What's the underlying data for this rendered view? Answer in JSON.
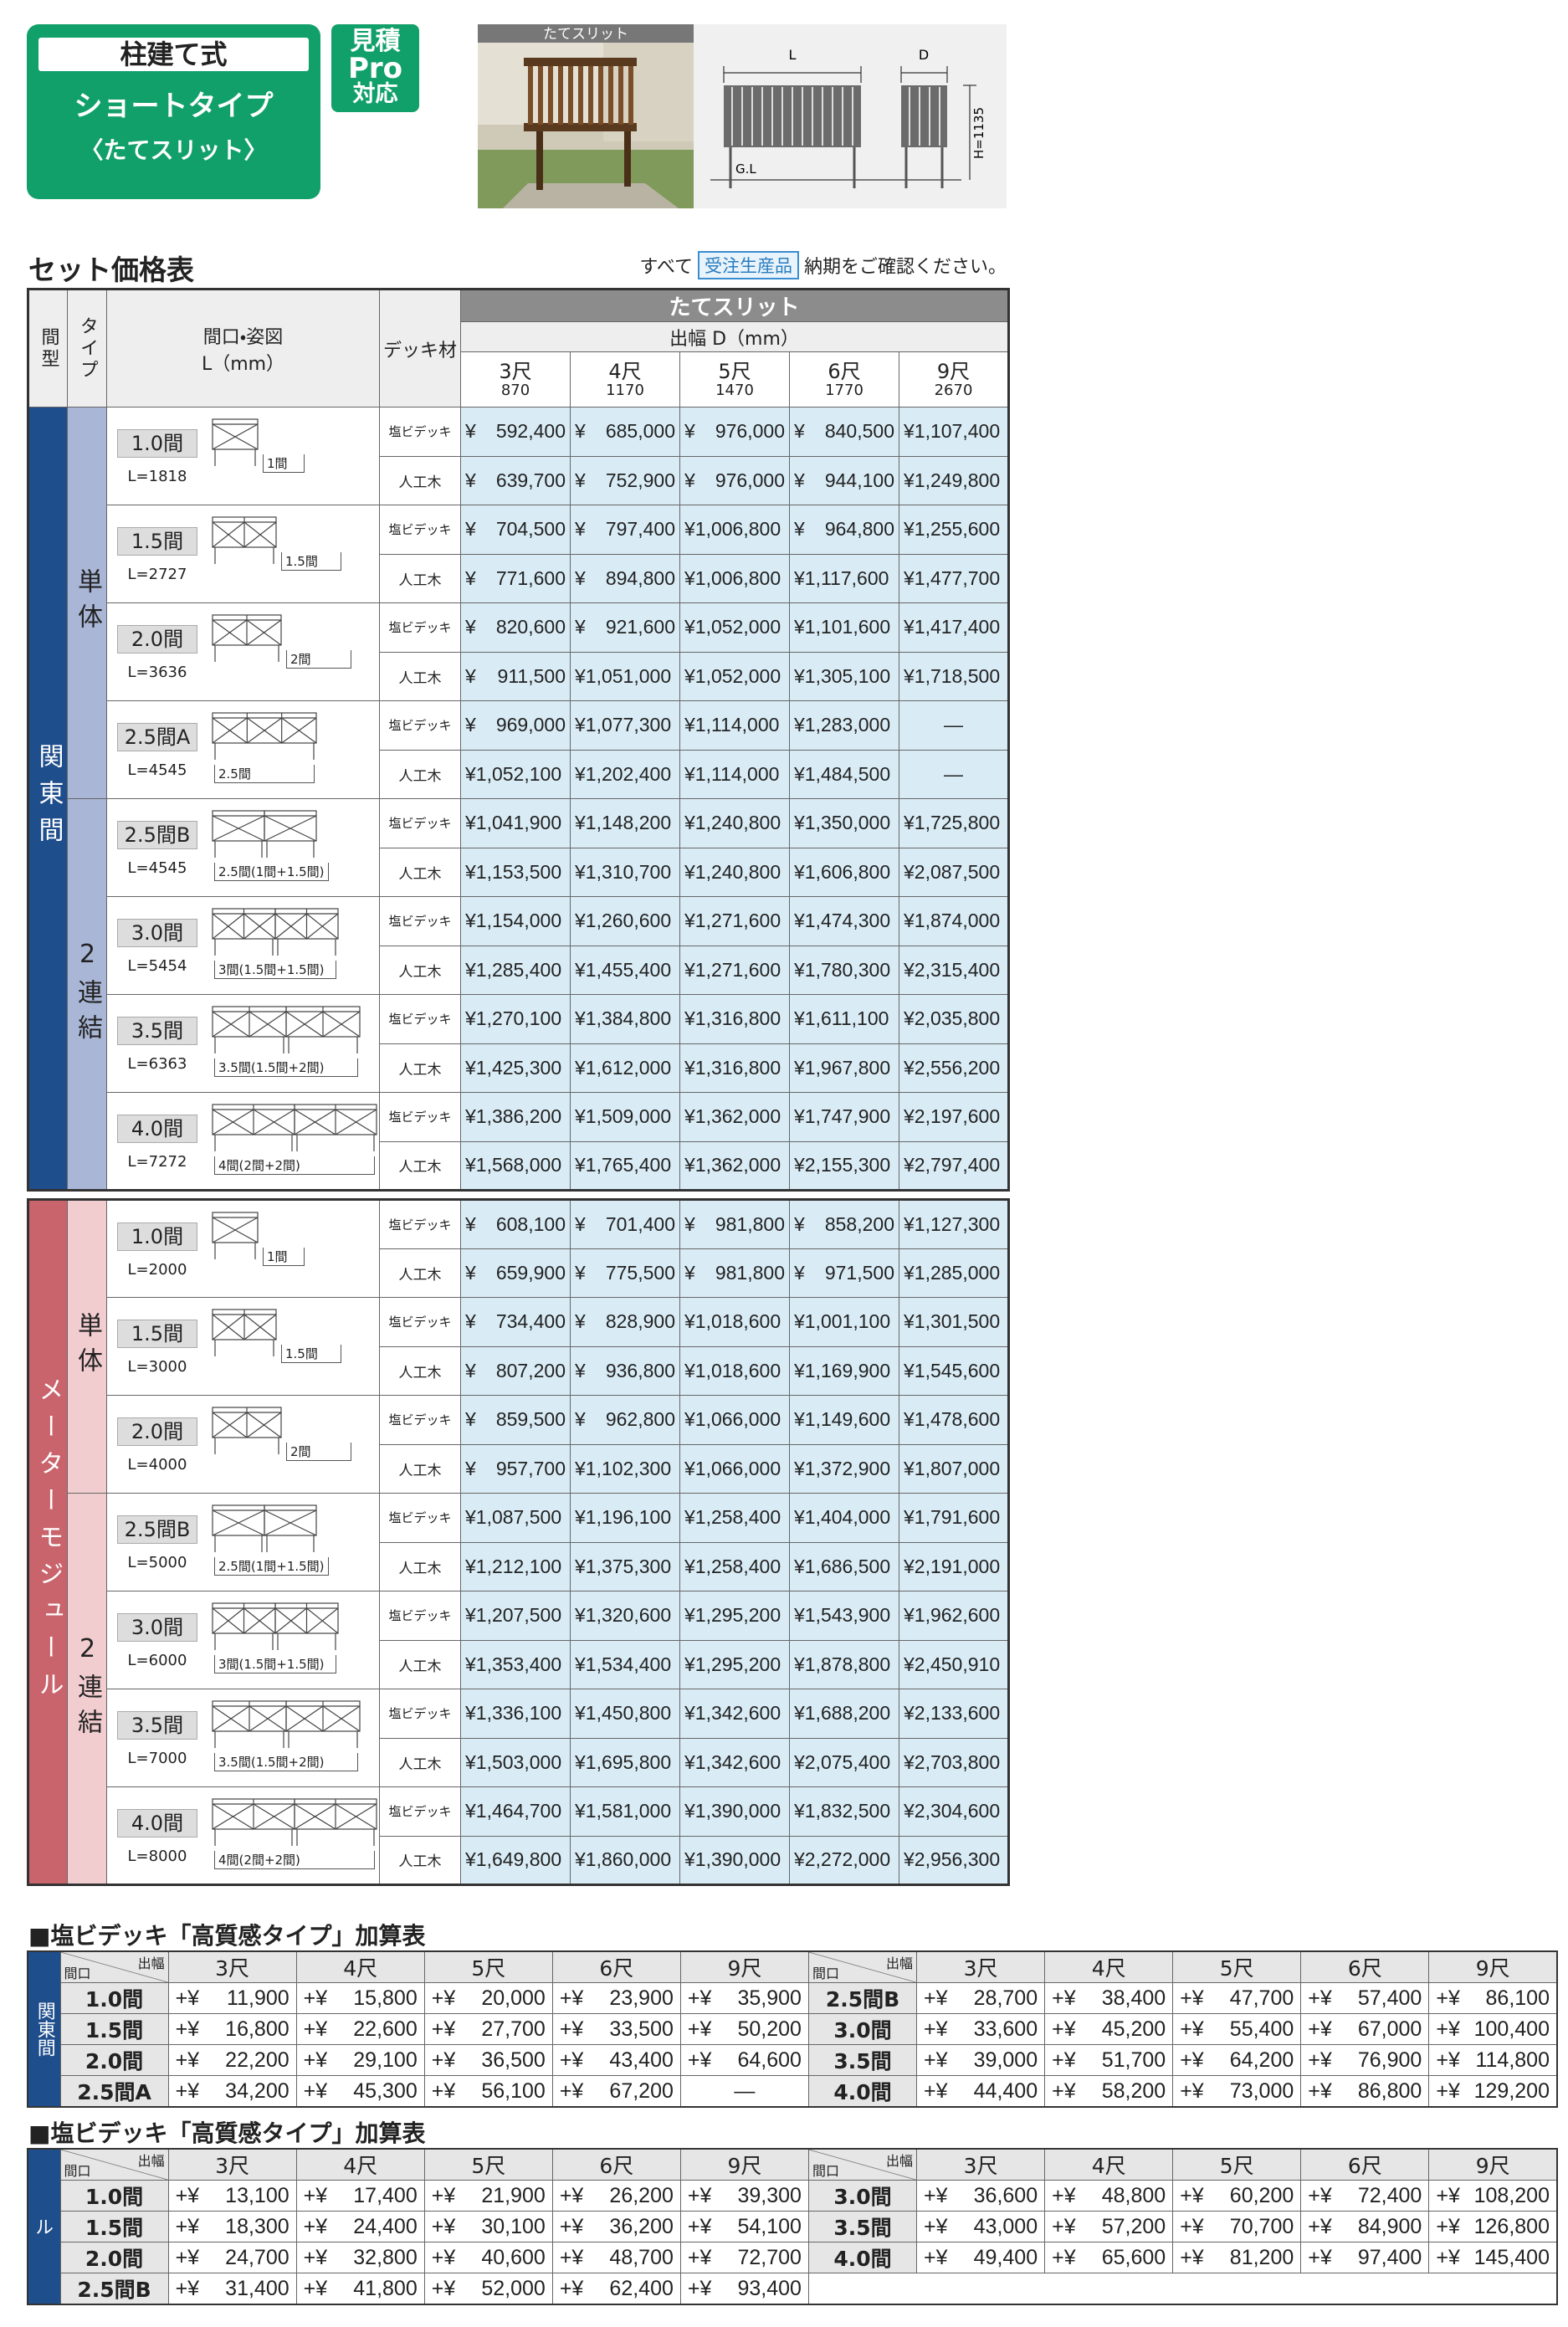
{
  "header": {
    "title": "柱建て式",
    "subtitle": "ショートタイプ",
    "variant": "〈たてスリット〉",
    "badge": [
      "見積",
      "Pro",
      "対応"
    ]
  },
  "photo": {
    "label": "たてスリット"
  },
  "drawing": {
    "width_label": "L",
    "depth_label": "D",
    "height_label": "H=1135",
    "ground_label": "G.L"
  },
  "price_table": {
    "title": "セット価格表",
    "note": {
      "prefix": "すべて",
      "tag": "受注生産品",
      "suffix": "納期をご確認ください。"
    },
    "headers": {
      "frame": "間型",
      "type": "タイプ",
      "size": "間口・姿図",
      "size_unit": "L（mm）",
      "deck": "デッキ材",
      "product": "たてスリット",
      "depth": "出幅 D（mm）"
    },
    "columns": [
      {
        "shaku": "3尺",
        "mm": "870"
      },
      {
        "shaku": "4尺",
        "mm": "1170"
      },
      {
        "shaku": "5尺",
        "mm": "1470"
      },
      {
        "shaku": "6尺",
        "mm": "1770"
      },
      {
        "shaku": "9尺",
        "mm": "2670"
      }
    ],
    "groups": [
      {
        "name": "関東間",
        "types": [
          {
            "name": "単体",
            "sizes": [
              {
                "label": "1.0間",
                "length": "L=1818",
                "sketch": "1間",
                "rows": [
                  {
                    "deck": "塩ビデッキ",
                    "prices": [
                      "¥ 592,400",
                      "¥ 685,000",
                      "¥ 976,000",
                      "¥ 840,500",
                      "¥1,107,400"
                    ]
                  },
                  {
                    "deck": "人工木",
                    "prices": [
                      "¥ 639,700",
                      "¥ 752,900",
                      "¥ 976,000",
                      "¥ 944,100",
                      "¥1,249,800"
                    ]
                  }
                ]
              },
              {
                "label": "1.5間",
                "length": "L=2727",
                "sketch": "1.5間",
                "rows": [
                  {
                    "deck": "塩ビデッキ",
                    "prices": [
                      "¥ 704,500",
                      "¥ 797,400",
                      "¥1,006,800",
                      "¥ 964,800",
                      "¥1,255,600"
                    ]
                  },
                  {
                    "deck": "人工木",
                    "prices": [
                      "¥ 771,600",
                      "¥ 894,800",
                      "¥1,006,800",
                      "¥1,117,600",
                      "¥1,477,700"
                    ]
                  }
                ]
              },
              {
                "label": "2.0間",
                "length": "L=3636",
                "sketch": "2間",
                "rows": [
                  {
                    "deck": "塩ビデッキ",
                    "prices": [
                      "¥ 820,600",
                      "¥ 921,600",
                      "¥1,052,000",
                      "¥1,101,600",
                      "¥1,417,400"
                    ]
                  },
                  {
                    "deck": "人工木",
                    "prices": [
                      "¥ 911,500",
                      "¥1,051,000",
                      "¥1,052,000",
                      "¥1,305,100",
                      "¥1,718,500"
                    ]
                  }
                ]
              },
              {
                "label": "2.5間A",
                "length": "L=4545",
                "sketch": "2.5間",
                "rows": [
                  {
                    "deck": "塩ビデッキ",
                    "prices": [
                      "¥ 969,000",
                      "¥1,077,300",
                      "¥1,114,000",
                      "¥1,283,000",
                      "—"
                    ]
                  },
                  {
                    "deck": "人工木",
                    "prices": [
                      "¥1,052,100",
                      "¥1,202,400",
                      "¥1,114,000",
                      "¥1,484,500",
                      "—"
                    ]
                  }
                ]
              }
            ]
          },
          {
            "name": "2連結",
            "sizes": [
              {
                "label": "2.5間B",
                "length": "L=4545",
                "sketch": "2.5間(1間+1.5間)",
                "rows": [
                  {
                    "deck": "塩ビデッキ",
                    "prices": [
                      "¥1,041,900",
                      "¥1,148,200",
                      "¥1,240,800",
                      "¥1,350,000",
                      "¥1,725,800"
                    ]
                  },
                  {
                    "deck": "人工木",
                    "prices": [
                      "¥1,153,500",
                      "¥1,310,700",
                      "¥1,240,800",
                      "¥1,606,800",
                      "¥2,087,500"
                    ]
                  }
                ]
              },
              {
                "label": "3.0間",
                "length": "L=5454",
                "sketch": "3間(1.5間+1.5間)",
                "rows": [
                  {
                    "deck": "塩ビデッキ",
                    "prices": [
                      "¥1,154,000",
                      "¥1,260,600",
                      "¥1,271,600",
                      "¥1,474,300",
                      "¥1,874,000"
                    ]
                  },
                  {
                    "deck": "人工木",
                    "prices": [
                      "¥1,285,400",
                      "¥1,455,400",
                      "¥1,271,600",
                      "¥1,780,300",
                      "¥2,315,400"
                    ]
                  }
                ]
              },
              {
                "label": "3.5間",
                "length": "L=6363",
                "sketch": "3.5間(1.5間+2間)",
                "rows": [
                  {
                    "deck": "塩ビデッキ",
                    "prices": [
                      "¥1,270,100",
                      "¥1,384,800",
                      "¥1,316,800",
                      "¥1,611,100",
                      "¥2,035,800"
                    ]
                  },
                  {
                    "deck": "人工木",
                    "prices": [
                      "¥1,425,300",
                      "¥1,612,000",
                      "¥1,316,800",
                      "¥1,967,800",
                      "¥2,556,200"
                    ]
                  }
                ]
              },
              {
                "label": "4.0間",
                "length": "L=7272",
                "sketch": "4間(2間+2間)",
                "rows": [
                  {
                    "deck": "塩ビデッキ",
                    "prices": [
                      "¥1,386,200",
                      "¥1,509,000",
                      "¥1,362,000",
                      "¥1,747,900",
                      "¥2,197,600"
                    ]
                  },
                  {
                    "deck": "人工木",
                    "prices": [
                      "¥1,568,000",
                      "¥1,765,400",
                      "¥1,362,000",
                      "¥2,155,300",
                      "¥2,797,400"
                    ]
                  }
                ]
              }
            ]
          }
        ]
      },
      {
        "name": "メーターモジュール",
        "types": [
          {
            "name": "単体",
            "sizes": [
              {
                "label": "1.0間",
                "length": "L=2000",
                "sketch": "1間",
                "rows": [
                  {
                    "deck": "塩ビデッキ",
                    "prices": [
                      "¥ 608,100",
                      "¥ 701,400",
                      "¥ 981,800",
                      "¥ 858,200",
                      "¥1,127,300"
                    ]
                  },
                  {
                    "deck": "人工木",
                    "prices": [
                      "¥ 659,900",
                      "¥ 775,500",
                      "¥ 981,800",
                      "¥ 971,500",
                      "¥1,285,000"
                    ]
                  }
                ]
              },
              {
                "label": "1.5間",
                "length": "L=3000",
                "sketch": "1.5間",
                "rows": [
                  {
                    "deck": "塩ビデッキ",
                    "prices": [
                      "¥ 734,400",
                      "¥ 828,900",
                      "¥1,018,600",
                      "¥1,001,100",
                      "¥1,301,500"
                    ]
                  },
                  {
                    "deck": "人工木",
                    "prices": [
                      "¥ 807,200",
                      "¥ 936,800",
                      "¥1,018,600",
                      "¥1,169,900",
                      "¥1,545,600"
                    ]
                  }
                ]
              },
              {
                "label": "2.0間",
                "length": "L=4000",
                "sketch": "2間",
                "rows": [
                  {
                    "deck": "塩ビデッキ",
                    "prices": [
                      "¥ 859,500",
                      "¥ 962,800",
                      "¥1,066,000",
                      "¥1,149,600",
                      "¥1,478,600"
                    ]
                  },
                  {
                    "deck": "人工木",
                    "prices": [
                      "¥ 957,700",
                      "¥1,102,300",
                      "¥1,066,000",
                      "¥1,372,900",
                      "¥1,807,000"
                    ]
                  }
                ]
              }
            ]
          },
          {
            "name": "2連結",
            "sizes": [
              {
                "label": "2.5間B",
                "length": "L=5000",
                "sketch": "2.5間(1間+1.5間)",
                "rows": [
                  {
                    "deck": "塩ビデッキ",
                    "prices": [
                      "¥1,087,500",
                      "¥1,196,100",
                      "¥1,258,400",
                      "¥1,404,000",
                      "¥1,791,600"
                    ]
                  },
                  {
                    "deck": "人工木",
                    "prices": [
                      "¥1,212,100",
                      "¥1,375,300",
                      "¥1,258,400",
                      "¥1,686,500",
                      "¥2,191,000"
                    ]
                  }
                ]
              },
              {
                "label": "3.0間",
                "length": "L=6000",
                "sketch": "3間(1.5間+1.5間)",
                "rows": [
                  {
                    "deck": "塩ビデッキ",
                    "prices": [
                      "¥1,207,500",
                      "¥1,320,600",
                      "¥1,295,200",
                      "¥1,543,900",
                      "¥1,962,600"
                    ]
                  },
                  {
                    "deck": "人工木",
                    "prices": [
                      "¥1,353,400",
                      "¥1,534,400",
                      "¥1,295,200",
                      "¥1,878,800",
                      "¥2,450,910"
                    ]
                  }
                ]
              },
              {
                "label": "3.5間",
                "length": "L=7000",
                "sketch": "3.5間(1.5間+2間)",
                "rows": [
                  {
                    "deck": "塩ビデッキ",
                    "prices": [
                      "¥1,336,100",
                      "¥1,450,800",
                      "¥1,342,600",
                      "¥1,688,200",
                      "¥2,133,600"
                    ]
                  },
                  {
                    "deck": "人工木",
                    "prices": [
                      "¥1,503,000",
                      "¥1,695,800",
                      "¥1,342,600",
                      "¥2,075,400",
                      "¥2,703,800"
                    ]
                  }
                ]
              },
              {
                "label": "4.0間",
                "length": "L=8000",
                "sketch": "4間(2間+2間)",
                "rows": [
                  {
                    "deck": "塩ビデッキ",
                    "prices": [
                      "¥1,464,700",
                      "¥1,581,000",
                      "¥1,390,000",
                      "¥1,832,500",
                      "¥2,304,600"
                    ]
                  },
                  {
                    "deck": "人工木",
                    "prices": [
                      "¥1,649,800",
                      "¥1,860,000",
                      "¥1,390,000",
                      "¥2,272,000",
                      "¥2,956,300"
                    ]
                  }
                ]
              }
            ]
          }
        ]
      }
    ]
  },
  "addon_tables": [
    {
      "title": "■塩ビデッキ「高質感タイプ」加算表",
      "region": "関東間",
      "corner_row": "間口",
      "corner_col": "出幅",
      "columns": [
        "3尺",
        "4尺",
        "5尺",
        "6尺",
        "9尺"
      ],
      "left": [
        {
          "label": "1.0間",
          "values": [
            "+¥ 11,900",
            "+¥ 15,800",
            "+¥ 20,000",
            "+¥ 23,900",
            "+¥ 35,900"
          ]
        },
        {
          "label": "1.5間",
          "values": [
            "+¥ 16,800",
            "+¥ 22,600",
            "+¥ 27,700",
            "+¥ 33,500",
            "+¥ 50,200"
          ]
        },
        {
          "label": "2.0間",
          "values": [
            "+¥ 22,200",
            "+¥ 29,100",
            "+¥ 36,500",
            "+¥ 43,400",
            "+¥ 64,600"
          ]
        },
        {
          "label": "2.5間A",
          "values": [
            "+¥ 34,200",
            "+¥ 45,300",
            "+¥ 56,100",
            "+¥ 67,200",
            "—"
          ]
        }
      ],
      "right": [
        {
          "label": "2.5間B",
          "values": [
            "+¥ 28,700",
            "+¥ 38,400",
            "+¥ 47,700",
            "+¥ 57,400",
            "+¥ 86,100"
          ]
        },
        {
          "label": "3.0間",
          "values": [
            "+¥ 33,600",
            "+¥ 45,200",
            "+¥ 55,400",
            "+¥ 67,000",
            "+¥ 100,400"
          ]
        },
        {
          "label": "3.5間",
          "values": [
            "+¥ 39,000",
            "+¥ 51,700",
            "+¥ 64,200",
            "+¥ 76,900",
            "+¥ 114,800"
          ]
        },
        {
          "label": "4.0間",
          "values": [
            "+¥ 44,400",
            "+¥ 58,200",
            "+¥ 73,000",
            "+¥ 86,800",
            "+¥ 129,200"
          ]
        }
      ]
    },
    {
      "title": "■塩ビデッキ「高質感タイプ」加算表",
      "region": "メーターモジュール",
      "corner_row": "間口",
      "corner_col": "出幅",
      "columns": [
        "3尺",
        "4尺",
        "5尺",
        "6尺",
        "9尺"
      ],
      "left": [
        {
          "label": "1.0間",
          "values": [
            "+¥ 13,100",
            "+¥ 17,400",
            "+¥ 21,900",
            "+¥ 26,200",
            "+¥ 39,300"
          ]
        },
        {
          "label": "1.5間",
          "values": [
            "+¥ 18,300",
            "+¥ 24,400",
            "+¥ 30,100",
            "+¥ 36,200",
            "+¥ 54,100"
          ]
        },
        {
          "label": "2.0間",
          "values": [
            "+¥ 24,700",
            "+¥ 32,800",
            "+¥ 40,600",
            "+¥ 48,700",
            "+¥ 72,700"
          ]
        },
        {
          "label": "2.5間B",
          "values": [
            "+¥ 31,400",
            "+¥ 41,800",
            "+¥ 52,000",
            "+¥ 62,400",
            "+¥ 93,400"
          ]
        }
      ],
      "right": [
        {
          "label": "3.0間",
          "values": [
            "+¥ 36,600",
            "+¥ 48,800",
            "+¥ 60,200",
            "+¥ 72,400",
            "+¥ 108,200"
          ]
        },
        {
          "label": "3.5間",
          "values": [
            "+¥ 43,000",
            "+¥ 57,200",
            "+¥ 70,700",
            "+¥ 84,900",
            "+¥ 126,800"
          ]
        },
        {
          "label": "4.0間",
          "values": [
            "+¥ 49,400",
            "+¥ 65,600",
            "+¥ 81,200",
            "+¥ 97,400",
            "+¥ 145,400"
          ]
        }
      ]
    }
  ]
}
